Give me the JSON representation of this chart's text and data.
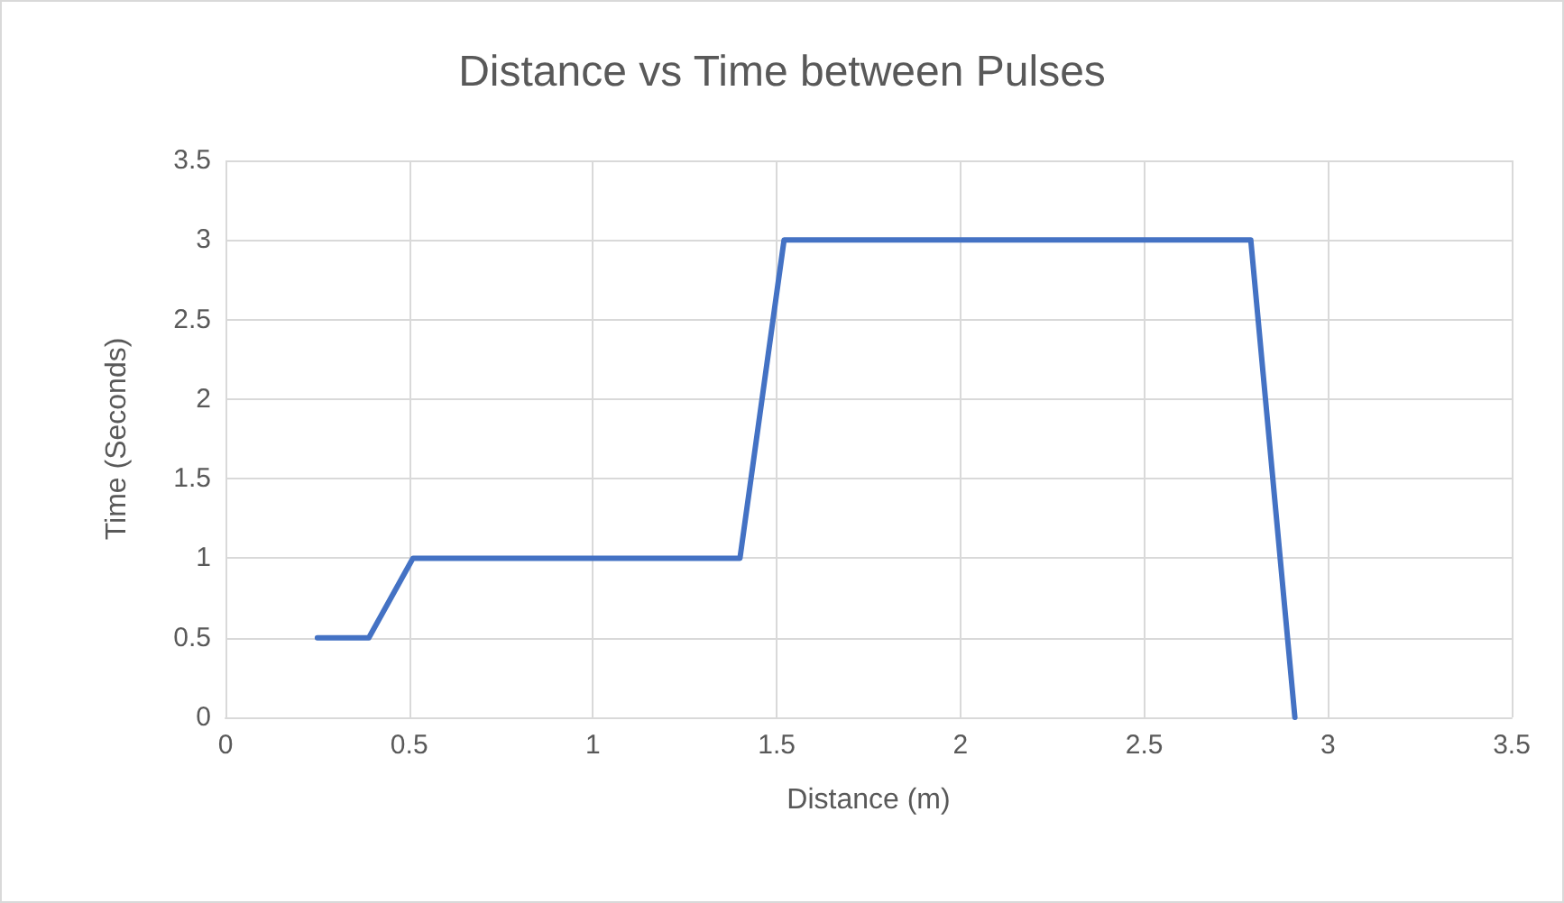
{
  "chart_data": {
    "type": "line",
    "title": "Distance vs Time between Pulses",
    "xlabel": "Distance (m)",
    "ylabel": "Time (Seconds)",
    "x": [
      0.25,
      0.39,
      0.51,
      1.4,
      1.52,
      2.79,
      2.91
    ],
    "series": [
      {
        "color": "#4472c4",
        "values": [
          0.5,
          0.5,
          1,
          1,
          3,
          3,
          0
        ]
      }
    ],
    "xlim": [
      0,
      3.5
    ],
    "xticks": [
      0,
      0.5,
      1,
      1.5,
      2,
      2.5,
      3,
      3.5
    ],
    "ylim": [
      0,
      3.5
    ],
    "yticks": [
      0,
      0.5,
      1,
      1.5,
      2,
      2.5,
      3,
      3.5
    ],
    "grid": true,
    "marker": "none",
    "line_style": "solid"
  }
}
